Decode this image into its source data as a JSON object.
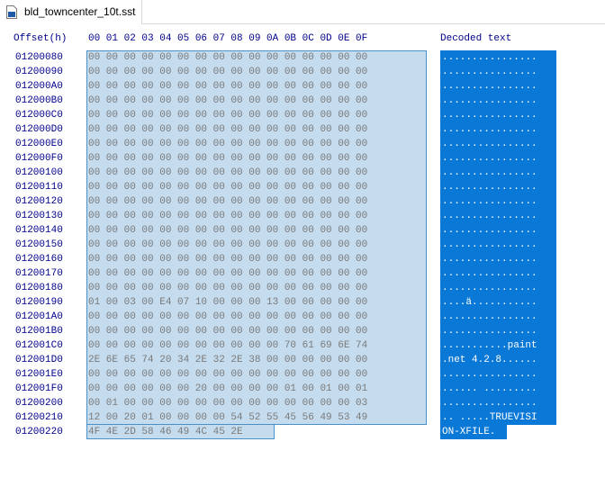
{
  "tab": {
    "title": "bld_towncenter_10t.sst",
    "icon": "file-icon"
  },
  "header": {
    "offset_label": "Offset(h)",
    "columns": "00 01 02 03 04 05 06 07 08 09 0A 0B 0C 0D 0E 0F",
    "decoded_label": "Decoded text"
  },
  "rows": [
    {
      "offset": "01200080",
      "hex": "00 00 00 00 00 00 00 00 00 00 00 00 00 00 00 00",
      "text": "................"
    },
    {
      "offset": "01200090",
      "hex": "00 00 00 00 00 00 00 00 00 00 00 00 00 00 00 00",
      "text": "................"
    },
    {
      "offset": "012000A0",
      "hex": "00 00 00 00 00 00 00 00 00 00 00 00 00 00 00 00",
      "text": "................"
    },
    {
      "offset": "012000B0",
      "hex": "00 00 00 00 00 00 00 00 00 00 00 00 00 00 00 00",
      "text": "................"
    },
    {
      "offset": "012000C0",
      "hex": "00 00 00 00 00 00 00 00 00 00 00 00 00 00 00 00",
      "text": "................"
    },
    {
      "offset": "012000D0",
      "hex": "00 00 00 00 00 00 00 00 00 00 00 00 00 00 00 00",
      "text": "................"
    },
    {
      "offset": "012000E0",
      "hex": "00 00 00 00 00 00 00 00 00 00 00 00 00 00 00 00",
      "text": "................"
    },
    {
      "offset": "012000F0",
      "hex": "00 00 00 00 00 00 00 00 00 00 00 00 00 00 00 00",
      "text": "................"
    },
    {
      "offset": "01200100",
      "hex": "00 00 00 00 00 00 00 00 00 00 00 00 00 00 00 00",
      "text": "................"
    },
    {
      "offset": "01200110",
      "hex": "00 00 00 00 00 00 00 00 00 00 00 00 00 00 00 00",
      "text": "................"
    },
    {
      "offset": "01200120",
      "hex": "00 00 00 00 00 00 00 00 00 00 00 00 00 00 00 00",
      "text": "................"
    },
    {
      "offset": "01200130",
      "hex": "00 00 00 00 00 00 00 00 00 00 00 00 00 00 00 00",
      "text": "................"
    },
    {
      "offset": "01200140",
      "hex": "00 00 00 00 00 00 00 00 00 00 00 00 00 00 00 00",
      "text": "................"
    },
    {
      "offset": "01200150",
      "hex": "00 00 00 00 00 00 00 00 00 00 00 00 00 00 00 00",
      "text": "................"
    },
    {
      "offset": "01200160",
      "hex": "00 00 00 00 00 00 00 00 00 00 00 00 00 00 00 00",
      "text": "................"
    },
    {
      "offset": "01200170",
      "hex": "00 00 00 00 00 00 00 00 00 00 00 00 00 00 00 00",
      "text": "................"
    },
    {
      "offset": "01200180",
      "hex": "00 00 00 00 00 00 00 00 00 00 00 00 00 00 00 00",
      "text": "................"
    },
    {
      "offset": "01200190",
      "hex": "01 00 03 00 E4 07 10 00 00 00 13 00 00 00 00 00",
      "text": "....ä..........."
    },
    {
      "offset": "012001A0",
      "hex": "00 00 00 00 00 00 00 00 00 00 00 00 00 00 00 00",
      "text": "................"
    },
    {
      "offset": "012001B0",
      "hex": "00 00 00 00 00 00 00 00 00 00 00 00 00 00 00 00",
      "text": "................"
    },
    {
      "offset": "012001C0",
      "hex": "00 00 00 00 00 00 00 00 00 00 00 70 61 69 6E 74",
      "text": "...........paint"
    },
    {
      "offset": "012001D0",
      "hex": "2E 6E 65 74 20 34 2E 32 2E 38 00 00 00 00 00 00",
      "text": ".net 4.2.8......"
    },
    {
      "offset": "012001E0",
      "hex": "00 00 00 00 00 00 00 00 00 00 00 00 00 00 00 00",
      "text": "................"
    },
    {
      "offset": "012001F0",
      "hex": "00 00 00 00 00 00 20 00 00 00 00 01 00 01 00 01",
      "text": "...... ........."
    },
    {
      "offset": "01200200",
      "hex": "00 01 00 00 00 00 00 00 00 00 00 00 00 00 00 03",
      "text": "................"
    },
    {
      "offset": "01200210",
      "hex": "12 00 20 01 00 00 00 00 54 52 55 45 56 49 53 49",
      "text": ".. .....TRUEVISI"
    },
    {
      "offset": "01200220",
      "hex": "4F 4E 2D 58 46 49 4C 45 2E",
      "text": "ON-XFILE."
    }
  ],
  "colors": {
    "offset_text": "#00008b",
    "hex_text": "#7a7a7a",
    "hex_selection_bg": "#c5dcef",
    "decoded_selection_bg": "#0a78d7"
  }
}
